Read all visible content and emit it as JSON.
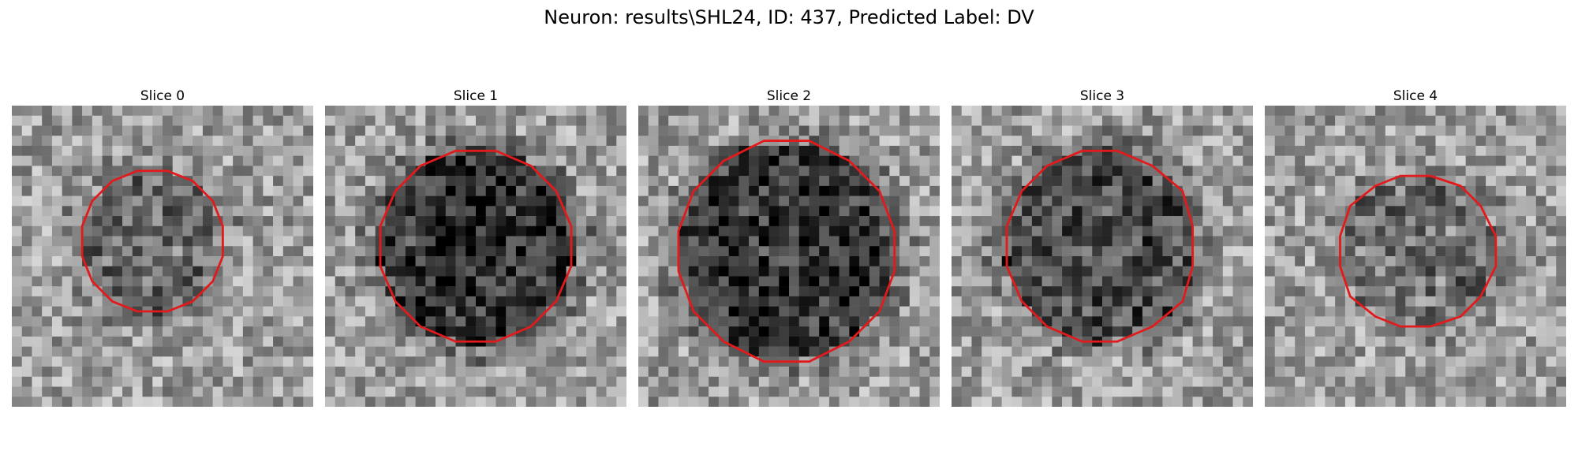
{
  "figure": {
    "title": "Neuron: results\\SHL24, ID: 437, Predicted Label: DV",
    "contour_color": "#e31a1c",
    "colormap": "gray",
    "grid_size": 30
  },
  "slices": [
    {
      "label": "Slice 0",
      "center": [
        14.0,
        13.5
      ],
      "radius": 7.2,
      "darkness": 0.2,
      "seed": 11
    },
    {
      "label": "Slice 1",
      "center": [
        15.0,
        14.0
      ],
      "radius": 9.8,
      "darkness": 0.42,
      "seed": 23
    },
    {
      "label": "Slice 2",
      "center": [
        14.8,
        14.5
      ],
      "radius": 11.0,
      "darkness": 0.4,
      "seed": 37
    },
    {
      "label": "Slice 3",
      "center": [
        14.8,
        14.0
      ],
      "radius": 9.6,
      "darkness": 0.33,
      "seed": 41
    },
    {
      "label": "Slice 4",
      "center": [
        15.2,
        14.5
      ],
      "radius": 7.8,
      "darkness": 0.18,
      "seed": 53
    }
  ]
}
